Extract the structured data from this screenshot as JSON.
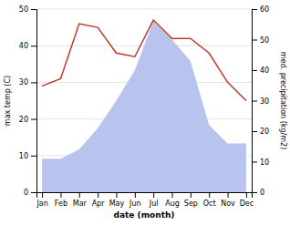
{
  "chart_data": {
    "type": "line",
    "xlabel": "date (month)",
    "ylabel": "max temp (C)",
    "y2label": "med. precipitation (kg/m2)",
    "categories": [
      "Jan",
      "Feb",
      "Mar",
      "Apr",
      "May",
      "Jun",
      "Jul",
      "Aug",
      "Sep",
      "Oct",
      "Nov",
      "Dec"
    ],
    "series": [
      {
        "type": "area",
        "axis": "y2",
        "color": "#b8c4ee",
        "values": [
          11,
          11,
          14,
          21,
          30,
          40,
          56,
          50,
          43,
          22,
          16,
          16
        ]
      },
      {
        "type": "line",
        "color": "#c0392b",
        "values": [
          29,
          31,
          46,
          45,
          38,
          37,
          47,
          42,
          42,
          38,
          30,
          25
        ]
      }
    ],
    "ylim": [
      0,
      50
    ],
    "yticks": [
      0,
      10,
      20,
      30,
      40,
      50
    ],
    "y2lim": [
      0,
      60
    ],
    "y2ticks": [
      0,
      10,
      20,
      30,
      40,
      50,
      60
    ],
    "grid": true
  }
}
